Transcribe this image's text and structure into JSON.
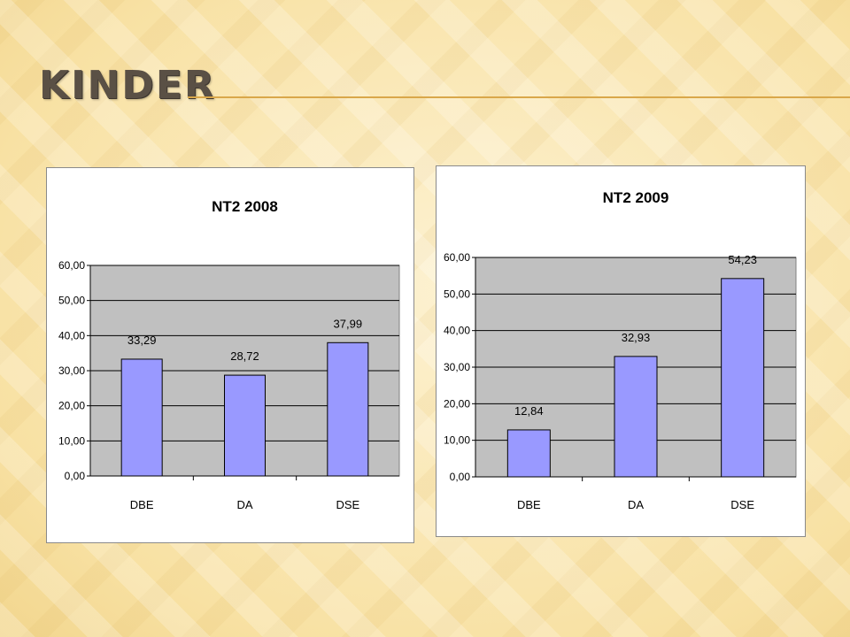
{
  "slide": {
    "title": "KINDER"
  },
  "chart_data": [
    {
      "type": "bar",
      "title": "NT2 2008",
      "categories": [
        "DBE",
        "DA",
        "DSE"
      ],
      "values": [
        33.29,
        28.72,
        37.99
      ],
      "value_labels": [
        "33,29",
        "28,72",
        "37,99"
      ],
      "yticks": [
        "0,00",
        "10,00",
        "20,00",
        "30,00",
        "40,00",
        "50,00",
        "60,00"
      ],
      "ylim": [
        0,
        60
      ],
      "xlabel": "",
      "ylabel": "",
      "grid": true,
      "legend": "none",
      "colors": {
        "bar": "#9999ff",
        "plot_bg": "#c0c0c0",
        "grid": "#000000"
      }
    },
    {
      "type": "bar",
      "title": "NT2 2009",
      "categories": [
        "DBE",
        "DA",
        "DSE"
      ],
      "values": [
        12.84,
        32.93,
        54.23
      ],
      "value_labels": [
        "12,84",
        "32,93",
        "54,23"
      ],
      "yticks": [
        "0,00",
        "10,00",
        "20,00",
        "30,00",
        "40,00",
        "50,00",
        "60,00"
      ],
      "ylim": [
        0,
        60
      ],
      "xlabel": "",
      "ylabel": "",
      "grid": true,
      "legend": "none",
      "colors": {
        "bar": "#9999ff",
        "plot_bg": "#c0c0c0",
        "grid": "#000000"
      }
    }
  ]
}
